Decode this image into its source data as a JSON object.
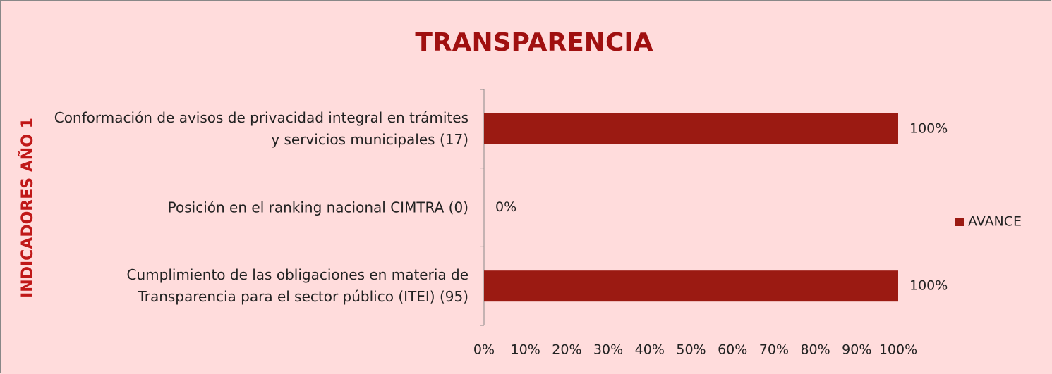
{
  "chart_data": {
    "type": "hbar",
    "title": "TRANSPARENCIA",
    "y_axis_label": "INDICADORES AÑO 1",
    "categories": [
      "Conformación de avisos de privacidad integral en trámites y servicios municipales (17)",
      "Posición en el ranking nacional CIMTRA (0)",
      "Cumplimiento de las obligaciones en materia de Transparencia para el sector público (ITEI) (95)"
    ],
    "series": [
      {
        "name": "AVANCE",
        "color": "#9b1a12",
        "values": [
          100,
          0,
          100
        ],
        "value_labels": [
          "100%",
          "0%",
          "100%"
        ]
      }
    ],
    "xlim": [
      0,
      100
    ],
    "xticks": [
      {
        "value": 0,
        "label": "0%"
      },
      {
        "value": 10,
        "label": "10%"
      },
      {
        "value": 20,
        "label": "20%"
      },
      {
        "value": 30,
        "label": "30%"
      },
      {
        "value": 40,
        "label": "40%"
      },
      {
        "value": 50,
        "label": "50%"
      },
      {
        "value": 60,
        "label": "60%"
      },
      {
        "value": 70,
        "label": "70%"
      },
      {
        "value": 80,
        "label": "80%"
      },
      {
        "value": 90,
        "label": "90%"
      },
      {
        "value": 100,
        "label": "100%"
      }
    ],
    "legend": "right"
  }
}
